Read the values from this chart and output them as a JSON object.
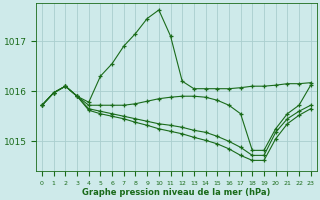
{
  "bg_color": "#ceeaea",
  "grid_color": "#aacece",
  "line_color": "#1a6b1a",
  "marker": "+",
  "xlabel": "Graphe pression niveau de la mer (hPa)",
  "xlabel_color": "#1a6b1a",
  "yticks": [
    1015,
    1016,
    1017
  ],
  "xlim": [
    -0.5,
    23.5
  ],
  "ylim": [
    1014.4,
    1017.75
  ],
  "series": [
    {
      "x": [
        0,
        1,
        2,
        3,
        4,
        5,
        6,
        7,
        8,
        9,
        10,
        11,
        12,
        13,
        14,
        15,
        16,
        17,
        18,
        19,
        20,
        21,
        22,
        23
      ],
      "y": [
        1015.72,
        1015.97,
        1016.1,
        1015.9,
        1015.78,
        1016.3,
        1016.55,
        1016.9,
        1017.15,
        1017.45,
        1017.62,
        1017.1,
        1016.2,
        1016.05,
        1016.05,
        1016.05,
        1016.05,
        1016.07,
        1016.1,
        1016.1,
        1016.12,
        1016.15,
        1016.15,
        1016.17
      ]
    },
    {
      "x": [
        0,
        1,
        2,
        3,
        4,
        5,
        6,
        7,
        8,
        9,
        10,
        11,
        12,
        13,
        14,
        15,
        16,
        17,
        18,
        19,
        20,
        21,
        22,
        23
      ],
      "y": [
        1015.72,
        1015.97,
        1016.1,
        1015.9,
        1015.72,
        1015.72,
        1015.72,
        1015.72,
        1015.75,
        1015.8,
        1015.85,
        1015.88,
        1015.9,
        1015.9,
        1015.88,
        1015.82,
        1015.72,
        1015.55,
        1014.82,
        1014.82,
        1015.25,
        1015.55,
        1015.72,
        1016.12
      ]
    },
    {
      "x": [
        0,
        1,
        2,
        3,
        4,
        5,
        6,
        7,
        8,
        9,
        10,
        11,
        12,
        13,
        14,
        15,
        16,
        17,
        18,
        19,
        20,
        21,
        22,
        23
      ],
      "y": [
        1015.72,
        1015.97,
        1016.1,
        1015.9,
        1015.65,
        1015.6,
        1015.55,
        1015.5,
        1015.45,
        1015.4,
        1015.35,
        1015.32,
        1015.28,
        1015.22,
        1015.18,
        1015.1,
        1015.0,
        1014.88,
        1014.72,
        1014.72,
        1015.18,
        1015.45,
        1015.6,
        1015.72
      ]
    },
    {
      "x": [
        0,
        1,
        2,
        3,
        4,
        5,
        6,
        7,
        8,
        9,
        10,
        11,
        12,
        13,
        14,
        15,
        16,
        17,
        18,
        19,
        20,
        21,
        22,
        23
      ],
      "y": [
        1015.72,
        1015.97,
        1016.1,
        1015.9,
        1015.62,
        1015.55,
        1015.5,
        1015.45,
        1015.38,
        1015.32,
        1015.25,
        1015.2,
        1015.15,
        1015.08,
        1015.02,
        1014.95,
        1014.85,
        1014.72,
        1014.62,
        1014.62,
        1015.05,
        1015.35,
        1015.52,
        1015.65
      ]
    }
  ]
}
